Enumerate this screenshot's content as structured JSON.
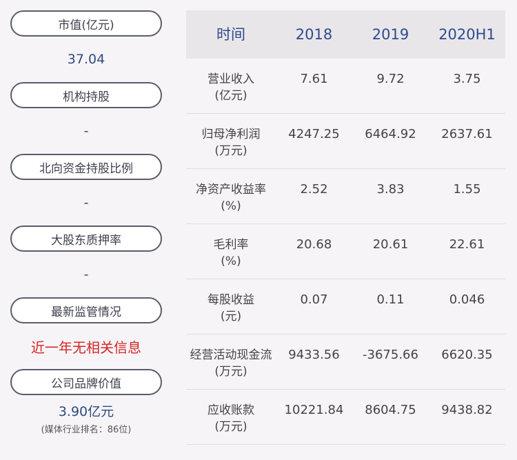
{
  "left_panel": {
    "items": [
      {
        "label": "市值(亿元)",
        "value": "37.04",
        "sub": ""
      },
      {
        "label": "机构持股",
        "value": "-",
        "sub": ""
      },
      {
        "label": "北向资金持股比例",
        "value": "-",
        "sub": ""
      },
      {
        "label": "大股东质押率",
        "value": "-",
        "sub": ""
      },
      {
        "label": "最新监管情况",
        "value": "近一年无相关信息",
        "sub": ""
      },
      {
        "label": "公司品牌价值",
        "value": "3.90亿元",
        "sub": "(媒体行业排名：86位)"
      }
    ]
  },
  "table": {
    "headers": [
      "时间",
      "2018",
      "2019",
      "2020H1"
    ],
    "rows": [
      {
        "name": "营业收入",
        "unit": "(亿元)",
        "values": [
          "7.61",
          "9.72",
          "3.75"
        ]
      },
      {
        "name": "归母净利润",
        "unit": "(万元)",
        "values": [
          "4247.25",
          "6464.92",
          "2637.61"
        ]
      },
      {
        "name": "净资产收益率",
        "unit": "(%)",
        "values": [
          "2.52",
          "3.83",
          "1.55"
        ]
      },
      {
        "name": "毛利率",
        "unit": "(%)",
        "values": [
          "20.68",
          "20.61",
          "22.61"
        ]
      },
      {
        "name": "每股收益",
        "unit": "(元)",
        "values": [
          "0.07",
          "0.11",
          "0.046"
        ]
      },
      {
        "name": "经营活动现金流",
        "unit": "(万元)",
        "values": [
          "9433.56",
          "-3675.66",
          "6620.35"
        ]
      },
      {
        "name": "应收账款",
        "unit": "(万元)",
        "values": [
          "10221.84",
          "8604.75",
          "9438.82"
        ]
      }
    ]
  },
  "colors": {
    "alert": "#d42727",
    "value_blue": "#2d4b7e",
    "header_blue": "#2d4b8e",
    "header_bg": "#e9e6ea"
  }
}
